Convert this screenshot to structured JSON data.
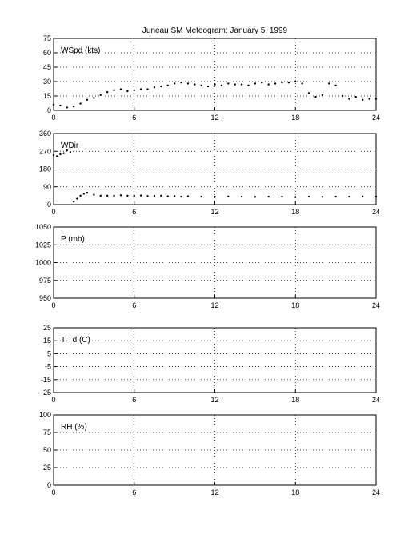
{
  "title": "Juneau SM Meteogram:    January   5, 1999",
  "chart_data": [
    {
      "type": "scatter",
      "label": "WSpd (kts)",
      "xlim": [
        0,
        24
      ],
      "ylim": [
        0,
        75
      ],
      "xticks": [
        0,
        6,
        12,
        18,
        24
      ],
      "yticks": [
        0,
        15,
        30,
        45,
        60,
        75
      ],
      "grid": true,
      "series": [
        {
          "x": [
            0,
            0.5,
            1,
            1.5,
            2,
            2.5,
            3,
            3.5,
            4,
            4.5,
            5,
            5.5,
            6,
            6.5,
            7,
            7.5,
            8,
            8.5,
            9,
            9.5,
            10,
            10.5,
            11,
            11.5,
            12,
            12.5,
            13,
            13.5,
            14,
            14.5,
            15,
            15.5,
            16,
            16.5,
            17,
            17.5,
            18,
            18.5,
            19,
            19.5,
            20,
            20.5,
            21,
            21.5,
            22,
            22.5,
            23,
            23.5,
            24
          ],
          "y": [
            6,
            5,
            3,
            4,
            7,
            11,
            13,
            16,
            19,
            21,
            22,
            20,
            21,
            22,
            22,
            24,
            25,
            26,
            28,
            29,
            28,
            27,
            26,
            25,
            27,
            26,
            28,
            27,
            27,
            26,
            28,
            29,
            27,
            28,
            29,
            29,
            30,
            28,
            18,
            14,
            16,
            28,
            26,
            15,
            12,
            14,
            11,
            12,
            12
          ]
        }
      ]
    },
    {
      "type": "scatter",
      "label": "WDir",
      "xlim": [
        0,
        24
      ],
      "ylim": [
        0,
        360
      ],
      "xticks": [
        0,
        6,
        12,
        18,
        24
      ],
      "yticks": [
        0,
        90,
        180,
        270,
        360
      ],
      "grid": true,
      "series": [
        {
          "x": [
            0,
            0.25,
            0.5,
            0.75,
            1,
            1.25,
            1.5,
            1.75,
            2,
            2.25,
            2.5,
            3,
            3.5,
            4,
            4.5,
            5,
            5.5,
            6,
            6.5,
            7,
            7.5,
            8,
            8.5,
            9,
            9.5,
            10,
            11,
            12,
            13,
            14,
            15,
            16,
            17,
            18,
            19,
            20,
            21,
            22,
            23,
            24
          ],
          "y": [
            250,
            245,
            255,
            260,
            275,
            265,
            15,
            30,
            45,
            55,
            60,
            50,
            45,
            45,
            45,
            47,
            45,
            44,
            46,
            43,
            44,
            45,
            42,
            43,
            40,
            42,
            40,
            40,
            41,
            40,
            39,
            40,
            40,
            38,
            40,
            39,
            40,
            40,
            41,
            40
          ]
        }
      ]
    },
    {
      "type": "line",
      "label": "P (mb)",
      "xlim": [
        0,
        24
      ],
      "ylim": [
        950,
        1050
      ],
      "xticks": [
        0,
        6,
        12,
        18,
        24
      ],
      "yticks": [
        950,
        975,
        1000,
        1025,
        1050
      ],
      "grid": true,
      "series": []
    },
    {
      "type": "line",
      "label": "T Td (C)",
      "xlim": [
        0,
        24
      ],
      "ylim": [
        -25,
        25
      ],
      "xticks": [
        0,
        6,
        12,
        18,
        24
      ],
      "yticks": [
        -25,
        -15,
        -5,
        5,
        15,
        25
      ],
      "grid": true,
      "series": []
    },
    {
      "type": "line",
      "label": "RH (%)",
      "xlim": [
        0,
        24
      ],
      "ylim": [
        0,
        100
      ],
      "xticks": [
        0,
        6,
        12,
        18,
        24
      ],
      "yticks": [
        0,
        25,
        50,
        75,
        100
      ],
      "grid": true,
      "series": []
    }
  ]
}
